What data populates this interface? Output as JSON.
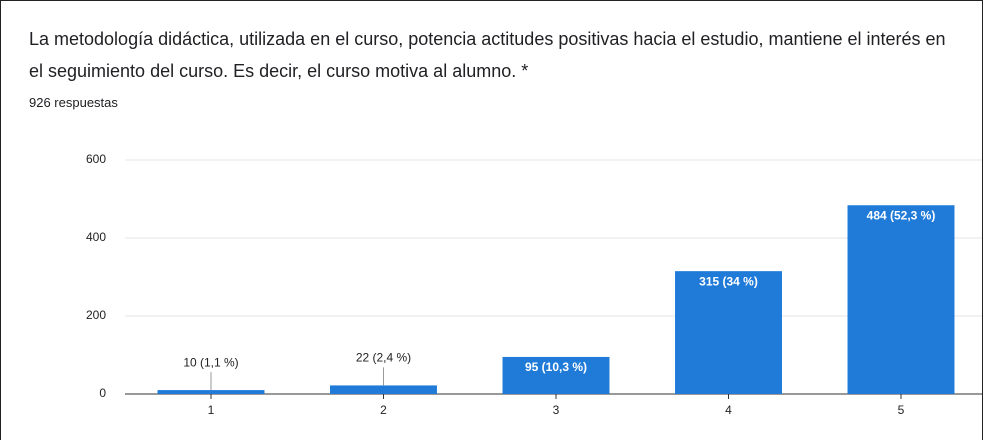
{
  "chart_data": {
    "type": "bar",
    "title": "La metodología didáctica, utilizada en el curso, potencia actitudes positivas hacia el estudio, mantiene el interés en el seguimiento del curso. Es decir, el curso motiva al alumno. *",
    "subtitle": "926 respuestas",
    "categories": [
      "1",
      "2",
      "3",
      "4",
      "5"
    ],
    "values": [
      10,
      22,
      95,
      315,
      484
    ],
    "value_labels": [
      "10 (1,1 %)",
      "22 (2,4 %)",
      "95 (10,3 %)",
      "315 (34 %)",
      "484 (52,3 %)"
    ],
    "color": "#1f7ad8",
    "ylim": [
      0,
      600
    ],
    "yticks": [
      0,
      200,
      400,
      600
    ],
    "grid": true
  }
}
